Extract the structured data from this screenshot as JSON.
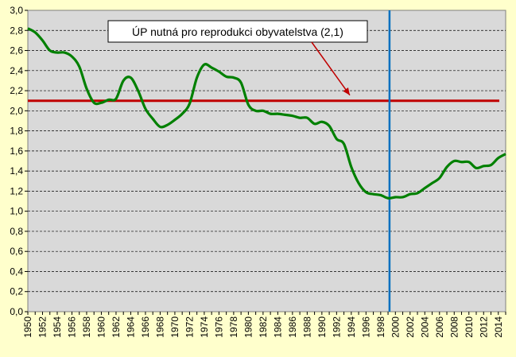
{
  "chart_data": {
    "type": "line",
    "title": "",
    "xlabel": "",
    "ylabel": "",
    "xlim": [
      1950,
      2015
    ],
    "ylim": [
      0,
      3.0
    ],
    "y_ticks": [
      "0,0",
      "0,2",
      "0,4",
      "0,6",
      "0,8",
      "1,0",
      "1,2",
      "1,4",
      "1,6",
      "1,8",
      "2,0",
      "2,2",
      "2,4",
      "2,6",
      "2,8",
      "3,0"
    ],
    "x_ticks": [
      "1950",
      "1952",
      "1954",
      "1956",
      "1958",
      "1960",
      "1962",
      "1964",
      "1966",
      "1968",
      "1970",
      "1972",
      "1974",
      "1976",
      "1978",
      "1980",
      "1982",
      "1984",
      "1986",
      "1988",
      "1990",
      "1992",
      "1994",
      "1996",
      "1998",
      "2000",
      "2002",
      "2004",
      "2006",
      "2008",
      "2010",
      "2012",
      "2014"
    ],
    "grid": true,
    "plot_background": "#d9d9d9",
    "page_background": "#ffffcc",
    "series": [
      {
        "color": "#008000",
        "x": [
          1950,
          1951,
          1952,
          1953,
          1954,
          1955,
          1956,
          1957,
          1958,
          1959,
          1960,
          1961,
          1962,
          1963,
          1964,
          1965,
          1966,
          1967,
          1968,
          1969,
          1970,
          1971,
          1972,
          1973,
          1974,
          1975,
          1976,
          1977,
          1978,
          1979,
          1980,
          1981,
          1982,
          1983,
          1984,
          1985,
          1986,
          1987,
          1988,
          1989,
          1990,
          1991,
          1992,
          1993,
          1994,
          1995,
          1996,
          1997,
          1998,
          1999,
          2000,
          2001,
          2002,
          2003,
          2004,
          2005,
          2006,
          2007,
          2008,
          2009,
          2010,
          2011,
          2012,
          2013,
          2014,
          2015
        ],
        "y": [
          2.82,
          2.78,
          2.7,
          2.6,
          2.58,
          2.58,
          2.54,
          2.44,
          2.22,
          2.08,
          2.08,
          2.11,
          2.12,
          2.3,
          2.33,
          2.2,
          2.02,
          1.92,
          1.84,
          1.86,
          1.91,
          1.97,
          2.07,
          2.33,
          2.46,
          2.43,
          2.39,
          2.34,
          2.33,
          2.28,
          2.06,
          2.0,
          2.0,
          1.97,
          1.97,
          1.96,
          1.95,
          1.93,
          1.93,
          1.87,
          1.89,
          1.85,
          1.72,
          1.67,
          1.44,
          1.28,
          1.19,
          1.17,
          1.16,
          1.13,
          1.14,
          1.14,
          1.17,
          1.18,
          1.23,
          1.28,
          1.33,
          1.44,
          1.5,
          1.49,
          1.49,
          1.43,
          1.45,
          1.46,
          1.53,
          1.57
        ]
      }
    ],
    "reference_line": {
      "y": 2.1,
      "color": "#c00000"
    },
    "vertical_line": {
      "x": 1999.2,
      "color": "#0070c0"
    },
    "annotation": {
      "text": "ÚP nutná pro reprodukci obyvatelstva  (2,1)",
      "arrow_color": "#c00000",
      "arrow_target_x": 1993.8,
      "arrow_target_y": 2.1
    }
  }
}
